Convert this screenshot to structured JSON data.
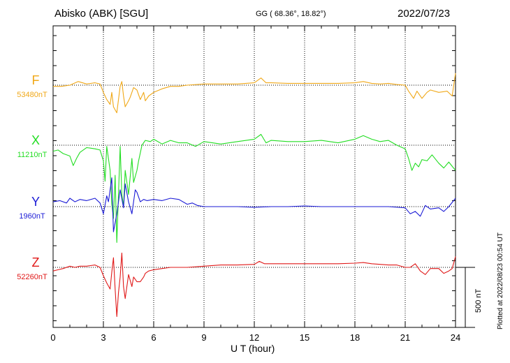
{
  "header": {
    "station": "Abisko (ABK)  [SGU]",
    "coords": "GG ( 68.36°,  18.82°)",
    "date": "2022/07/23"
  },
  "footer": {
    "plotted": "Plotted at 2022/08/23 00:54 UT",
    "scale_label": "500 nT"
  },
  "chart_data": {
    "type": "line",
    "title": "Abisko (ABK)  [SGU]",
    "xlabel": "U T (hour)",
    "ylabel": "",
    "xlim": [
      0,
      24
    ],
    "xticks": [
      0,
      3,
      6,
      9,
      12,
      15,
      18,
      21,
      24
    ],
    "scale_nT": 500,
    "grid": true,
    "series": [
      {
        "name": "F",
        "baseline_label": "53480nT",
        "baseline_nT": 53480,
        "color": "#f0a818",
        "x": [
          0,
          0.5,
          1,
          1.5,
          2,
          2.5,
          2.8,
          3,
          3.2,
          3.4,
          3.5,
          3.6,
          3.8,
          4,
          4.1,
          4.2,
          4.3,
          4.5,
          4.6,
          4.7,
          4.8,
          5,
          5.2,
          5.4,
          5.5,
          5.7,
          6,
          6.5,
          7,
          7.5,
          8,
          9,
          10,
          11,
          12,
          12.4,
          12.7,
          13,
          14,
          15,
          16,
          17,
          18,
          18.5,
          19,
          19.5,
          20,
          20.5,
          21,
          21.2,
          21.5,
          21.7,
          22,
          22.3,
          22.5,
          23,
          23.5,
          23.8,
          24
        ],
        "y": [
          53470,
          53470,
          53480,
          53510,
          53490,
          53500,
          53490,
          53420,
          53360,
          53320,
          53420,
          53300,
          53250,
          53470,
          53510,
          53390,
          53300,
          53350,
          53380,
          53420,
          53460,
          53440,
          53360,
          53420,
          53350,
          53390,
          53420,
          53450,
          53470,
          53470,
          53480,
          53490,
          53490,
          53490,
          53500,
          53540,
          53500,
          53500,
          53495,
          53495,
          53495,
          53495,
          53500,
          53510,
          53495,
          53490,
          53495,
          53485,
          53480,
          53430,
          53370,
          53430,
          53370,
          53420,
          53440,
          53420,
          53430,
          53390,
          53580
        ]
      },
      {
        "name": "X",
        "baseline_label": "11210nT",
        "baseline_nT": 11210,
        "color": "#22dd22",
        "x": [
          0,
          0.3,
          0.6,
          1,
          1.2,
          1.4,
          1.6,
          2,
          2.5,
          2.8,
          3,
          3.1,
          3.2,
          3.4,
          3.5,
          3.6,
          3.7,
          3.8,
          4,
          4.1,
          4.2,
          4.3,
          4.5,
          4.7,
          4.8,
          5,
          5.1,
          5.3,
          5.5,
          5.8,
          6,
          6.5,
          7,
          7.5,
          8,
          8.5,
          9,
          10,
          11,
          12,
          12.4,
          12.7,
          13,
          14,
          15,
          16,
          17,
          18,
          18.5,
          19,
          19.5,
          20,
          20.5,
          21,
          21.2,
          21.4,
          21.6,
          21.8,
          22,
          22.3,
          22.6,
          23,
          23.3,
          23.6,
          24
        ],
        "y": [
          11160,
          11170,
          11140,
          11120,
          11040,
          11100,
          11150,
          11190,
          11180,
          11170,
          11080,
          10910,
          11200,
          11000,
          10720,
          10600,
          10960,
          10400,
          11200,
          10800,
          10700,
          11000,
          10800,
          11100,
          10900,
          11000,
          11080,
          11210,
          11250,
          11240,
          11260,
          11220,
          11250,
          11230,
          11230,
          11200,
          11240,
          11220,
          11240,
          11260,
          11300,
          11230,
          11250,
          11240,
          11240,
          11250,
          11230,
          11260,
          11290,
          11260,
          11240,
          11250,
          11210,
          11180,
          11100,
          11000,
          11060,
          11030,
          11090,
          11080,
          11130,
          11060,
          11020,
          11070,
          11000
        ]
      },
      {
        "name": "Y",
        "baseline_label": "1960nT",
        "baseline_nT": 1960,
        "color": "#1b1bd6",
        "x": [
          0,
          0.4,
          0.8,
          1,
          1.3,
          1.6,
          2,
          2.5,
          2.8,
          3,
          3.2,
          3.3,
          3.5,
          3.6,
          3.8,
          4,
          4.2,
          4.3,
          4.5,
          4.7,
          4.9,
          5,
          5.2,
          5.4,
          5.6,
          6,
          6.5,
          7,
          7.5,
          8,
          8.3,
          8.6,
          9,
          10,
          11,
          12,
          13,
          14,
          15,
          16,
          17,
          18,
          19,
          20,
          21,
          21.3,
          21.6,
          21.9,
          22.2,
          22.5,
          23,
          23.3,
          23.6,
          24
        ],
        "y": [
          2000,
          2010,
          1990,
          2030,
          2000,
          2020,
          2010,
          2030,
          1990,
          1900,
          2050,
          2000,
          2200,
          1750,
          1900,
          2100,
          1950,
          2150,
          2000,
          1900,
          2100,
          2080,
          2000,
          2020,
          2010,
          2020,
          2010,
          2030,
          2020,
          1980,
          1990,
          1970,
          1960,
          1960,
          1960,
          1955,
          1960,
          1960,
          1965,
          1960,
          1960,
          1960,
          1960,
          1960,
          1950,
          1900,
          1920,
          1880,
          1970,
          1940,
          1950,
          1920,
          1960,
          2030
        ]
      },
      {
        "name": "Z",
        "baseline_label": "52260nT",
        "baseline_nT": 52260,
        "color": "#e01818",
        "x": [
          0,
          0.3,
          0.6,
          1,
          1.3,
          1.6,
          2,
          2.5,
          2.8,
          3,
          3.2,
          3.4,
          3.5,
          3.6,
          3.7,
          3.8,
          3.9,
          4,
          4.1,
          4.2,
          4.3,
          4.5,
          4.7,
          4.8,
          5,
          5.2,
          5.4,
          5.5,
          5.7,
          6,
          6.5,
          7,
          7.5,
          8,
          9,
          10,
          11,
          12,
          12.3,
          12.6,
          13,
          14,
          15,
          16,
          17,
          18,
          18.5,
          19,
          19.5,
          20,
          20.5,
          21,
          21.3,
          21.6,
          21.9,
          22.2,
          22.5,
          23,
          23.3,
          23.6,
          23.8,
          24
        ],
        "y": [
          52230,
          52240,
          52250,
          52270,
          52260,
          52270,
          52270,
          52280,
          52260,
          52190,
          52130,
          52080,
          52220,
          52340,
          52080,
          51850,
          52050,
          52180,
          52380,
          52100,
          52000,
          52200,
          52100,
          52180,
          52140,
          52140,
          52180,
          52210,
          52230,
          52240,
          52250,
          52260,
          52260,
          52260,
          52270,
          52280,
          52280,
          52285,
          52310,
          52290,
          52290,
          52290,
          52290,
          52290,
          52290,
          52295,
          52300,
          52290,
          52285,
          52280,
          52280,
          52260,
          52260,
          52290,
          52230,
          52200,
          52250,
          52250,
          52210,
          52230,
          52250,
          52350
        ]
      }
    ]
  }
}
